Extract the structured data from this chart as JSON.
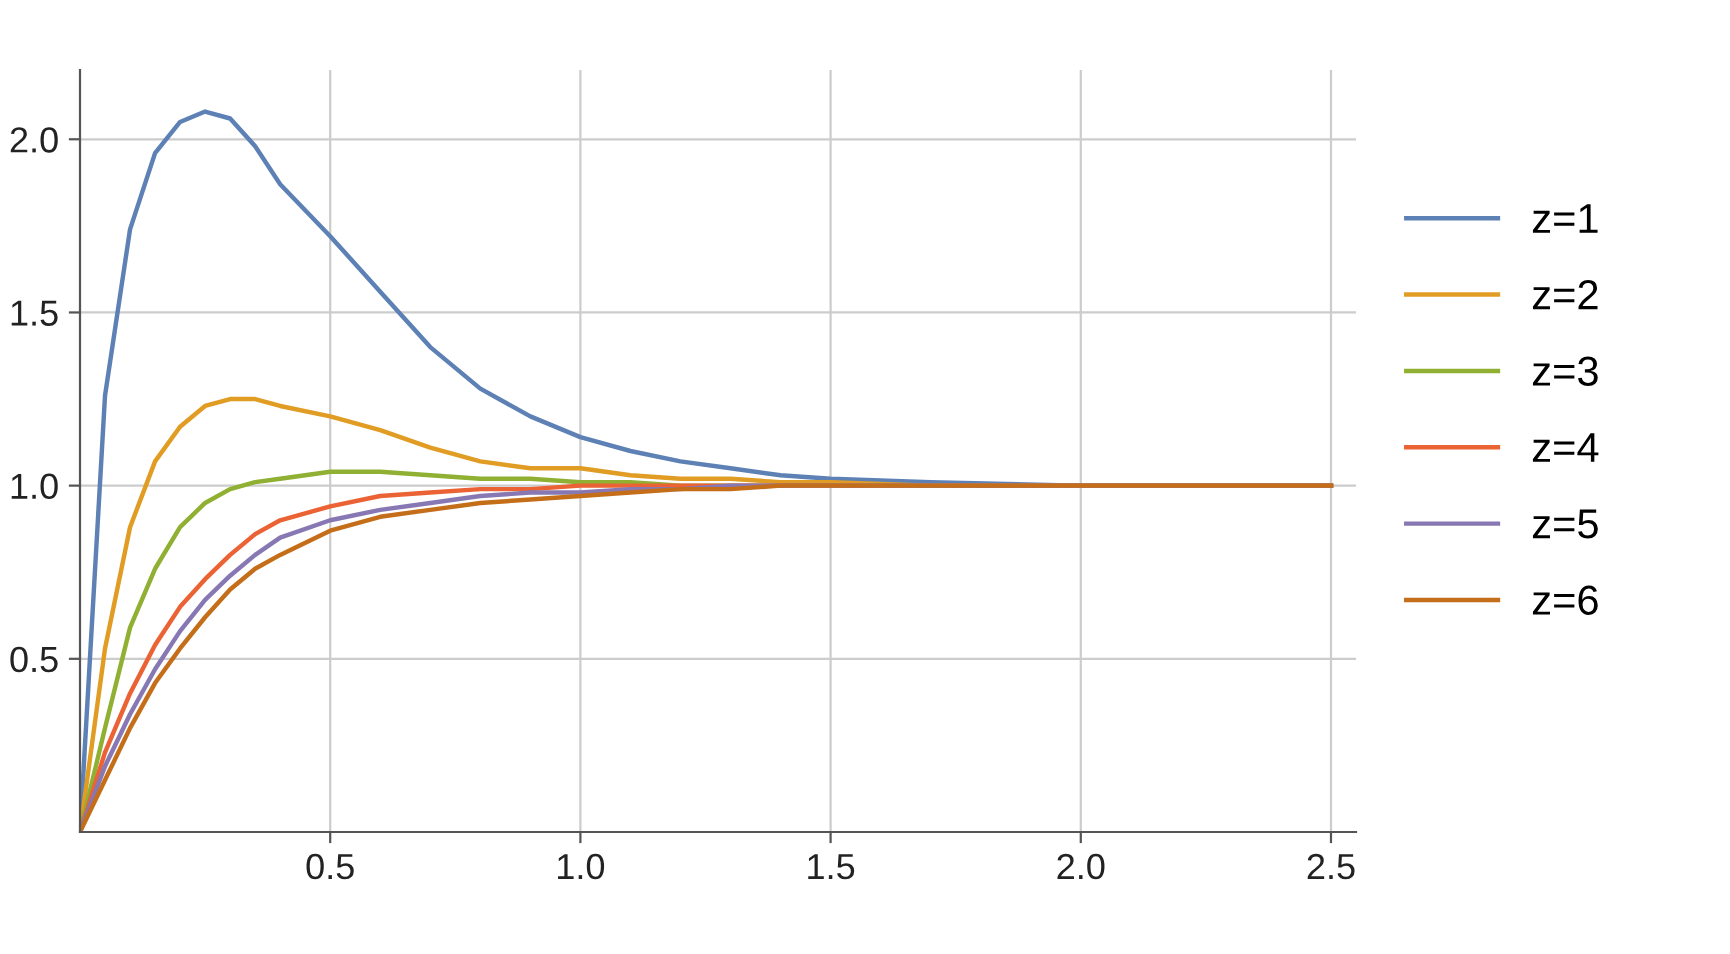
{
  "chart_data": {
    "type": "line",
    "x": [
      0,
      0.05,
      0.1,
      0.15,
      0.2,
      0.25,
      0.3,
      0.35,
      0.4,
      0.5,
      0.6,
      0.7,
      0.8,
      0.9,
      1.0,
      1.1,
      1.2,
      1.3,
      1.4,
      1.5,
      1.7,
      2.0,
      2.5
    ],
    "series": [
      {
        "name": "z=1",
        "color": "#5e81b5",
        "values": [
          0,
          1.26,
          1.74,
          1.96,
          2.05,
          2.08,
          2.06,
          1.98,
          1.87,
          1.72,
          1.56,
          1.4,
          1.28,
          1.2,
          1.14,
          1.1,
          1.07,
          1.05,
          1.03,
          1.02,
          1.01,
          1.0,
          1.0
        ]
      },
      {
        "name": "z=2",
        "color": "#e19c24",
        "values": [
          0,
          0.53,
          0.88,
          1.07,
          1.17,
          1.23,
          1.25,
          1.25,
          1.23,
          1.2,
          1.16,
          1.11,
          1.07,
          1.05,
          1.05,
          1.03,
          1.02,
          1.02,
          1.01,
          1.01,
          1.0,
          1.0,
          1.0
        ]
      },
      {
        "name": "z=3",
        "color": "#8fb032",
        "values": [
          0,
          0.3,
          0.59,
          0.76,
          0.88,
          0.95,
          0.99,
          1.01,
          1.02,
          1.04,
          1.04,
          1.03,
          1.02,
          1.02,
          1.01,
          1.01,
          1.0,
          1.0,
          1.0,
          1.0,
          1.0,
          1.0,
          1.0
        ]
      },
      {
        "name": "z=4",
        "color": "#eb6235",
        "values": [
          0,
          0.23,
          0.4,
          0.54,
          0.65,
          0.73,
          0.8,
          0.86,
          0.9,
          0.94,
          0.97,
          0.98,
          0.99,
          0.99,
          1.0,
          1.0,
          1.0,
          1.0,
          1.0,
          1.0,
          1.0,
          1.0,
          1.0
        ]
      },
      {
        "name": "z=5",
        "color": "#8778b3",
        "values": [
          0,
          0.19,
          0.34,
          0.47,
          0.58,
          0.67,
          0.74,
          0.8,
          0.85,
          0.9,
          0.93,
          0.95,
          0.97,
          0.98,
          0.98,
          0.99,
          0.99,
          1.0,
          1.0,
          1.0,
          1.0,
          1.0,
          1.0
        ]
      },
      {
        "name": "z=6",
        "color": "#c56e1a",
        "values": [
          0,
          0.15,
          0.3,
          0.43,
          0.53,
          0.62,
          0.7,
          0.76,
          0.8,
          0.87,
          0.91,
          0.93,
          0.95,
          0.96,
          0.97,
          0.98,
          0.99,
          0.99,
          1.0,
          1.0,
          1.0,
          1.0,
          1.0
        ]
      }
    ],
    "xlim": [
      0,
      2.55
    ],
    "ylim": [
      0,
      2.2
    ],
    "xticks": [
      0.5,
      {
        "value": 1,
        "label": "1.0"
      },
      1.5,
      {
        "value": 2,
        "label": "2.0"
      },
      2.5
    ],
    "yticks": [
      0.5,
      {
        "value": 1,
        "label": "1.0"
      },
      1.5,
      {
        "value": 2,
        "label": "2.0"
      }
    ],
    "grid": true,
    "legend": "right",
    "marker": "none",
    "line_style": "solid"
  }
}
